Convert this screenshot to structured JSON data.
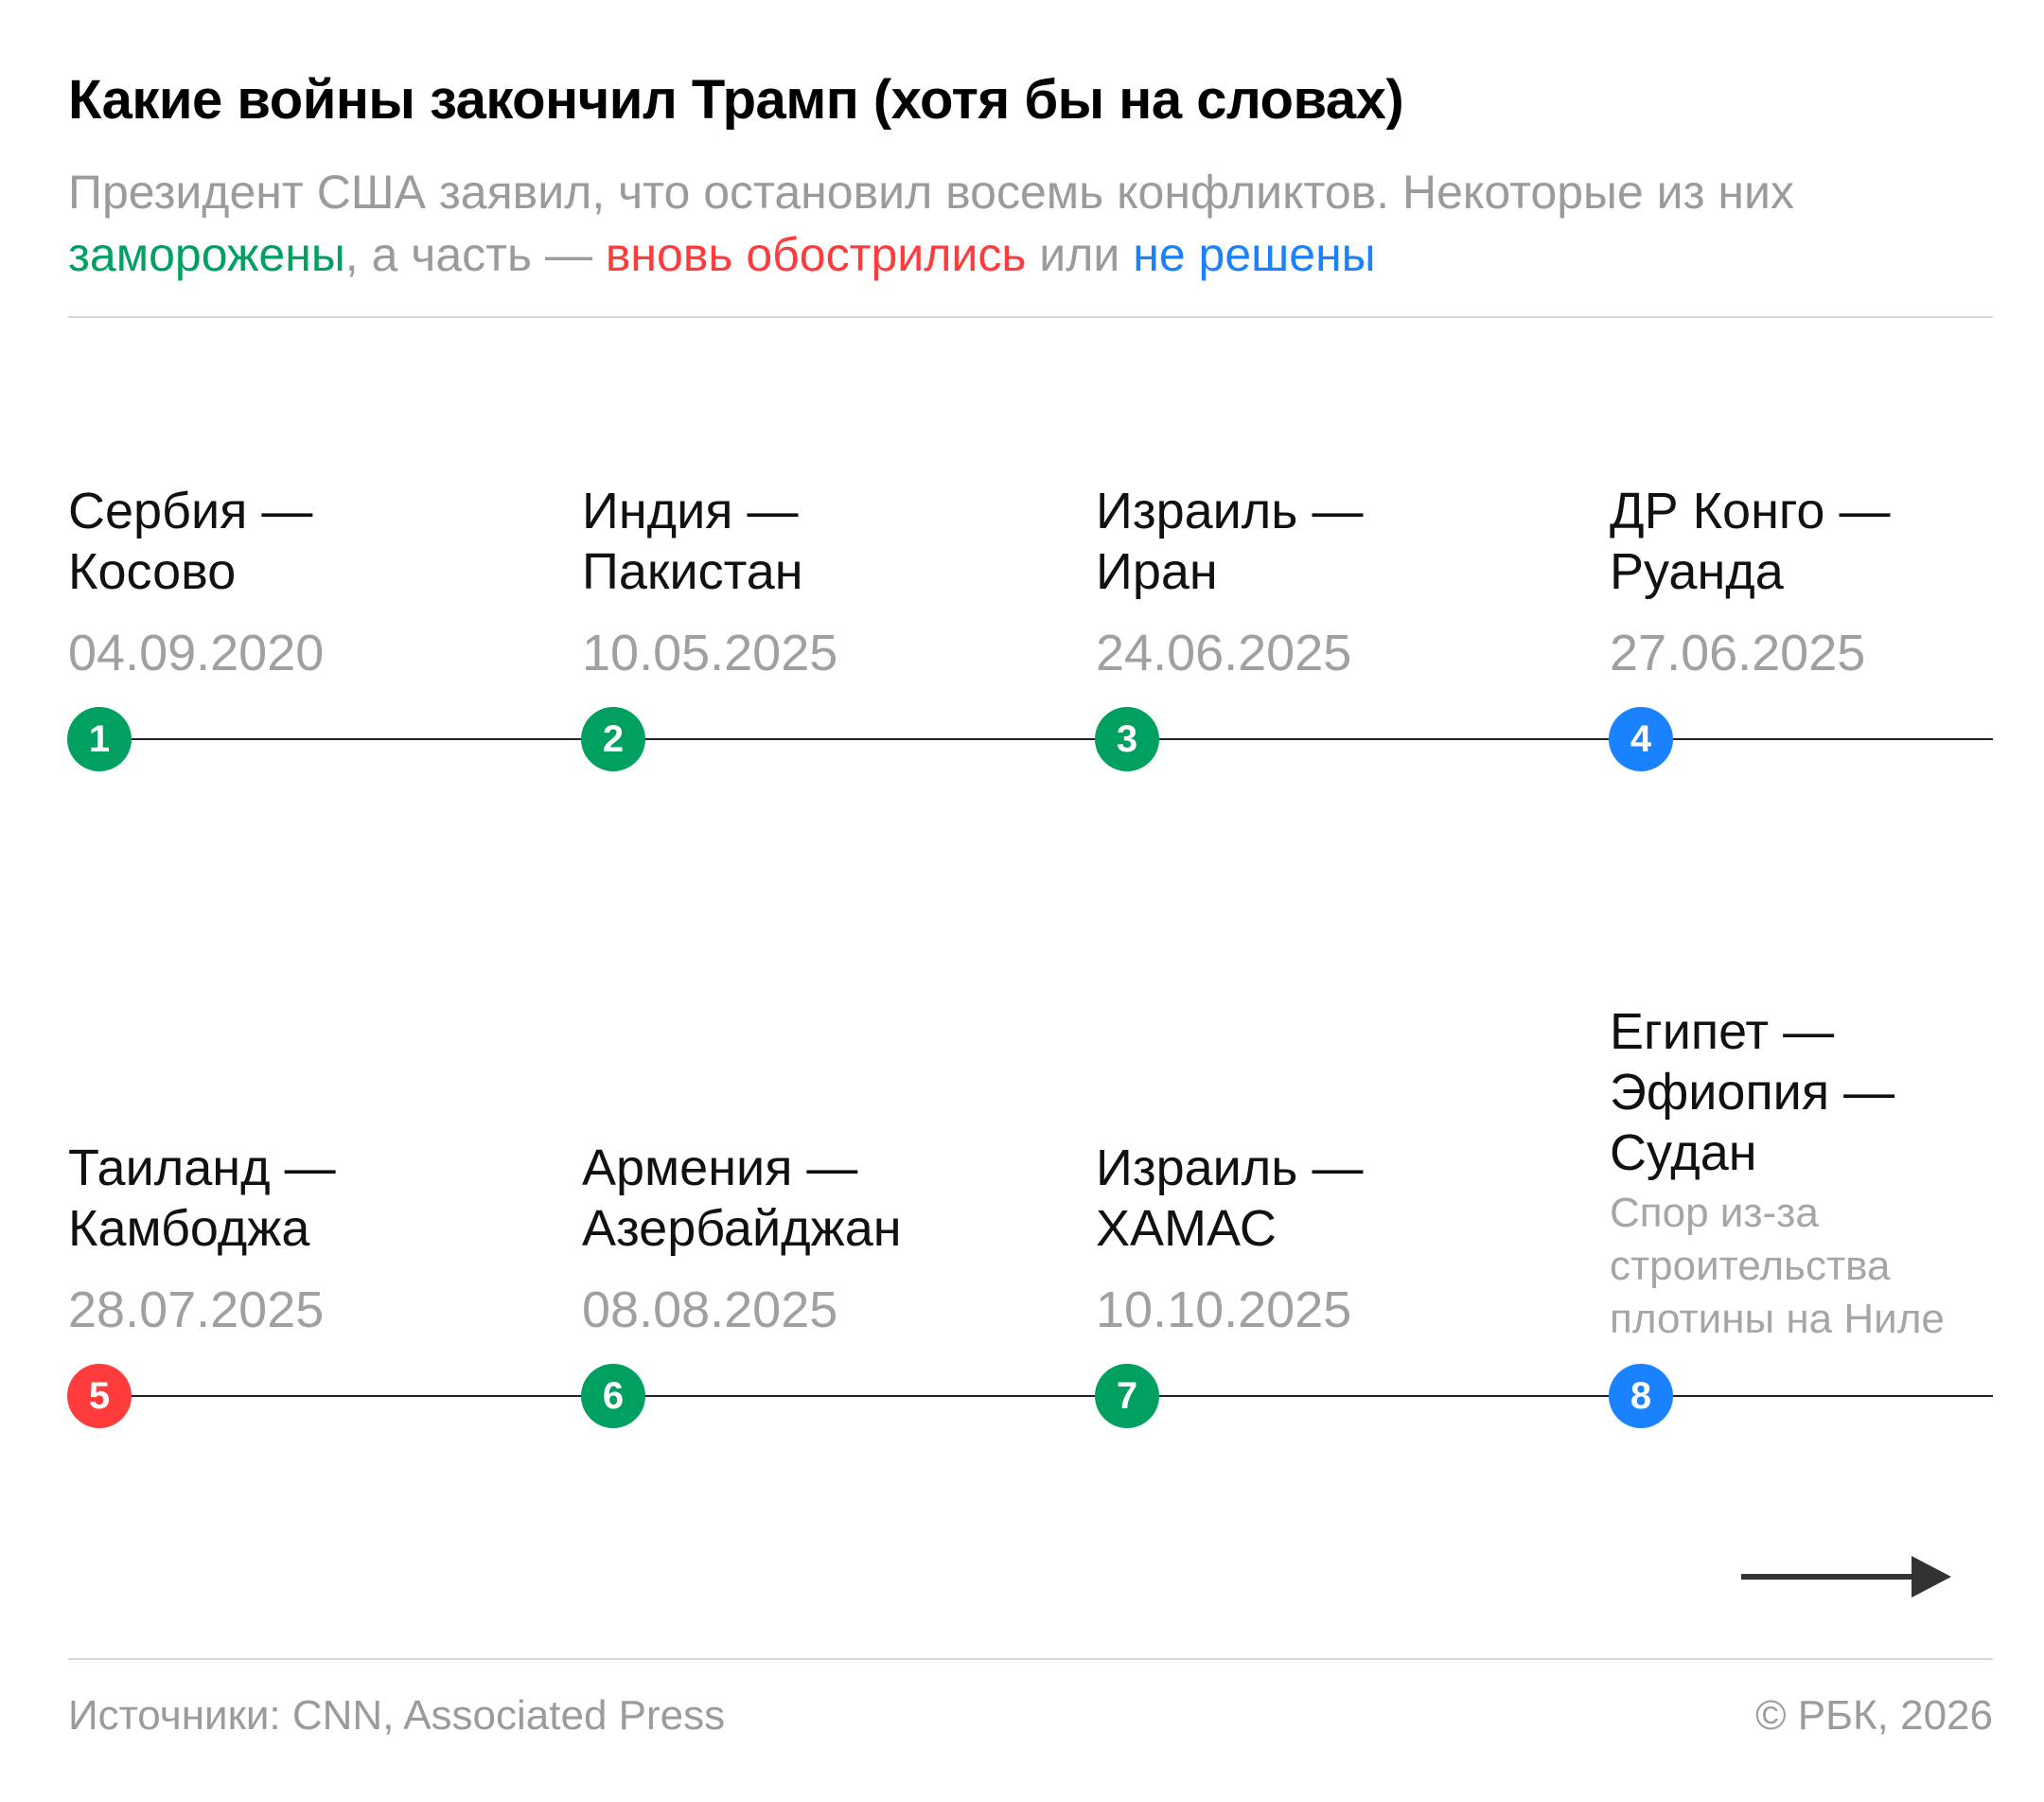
{
  "title": "Какие войны закончил Трамп (хотя бы на словах)",
  "subtitle": {
    "part1": "Президент США заявил, что остановил восемь конфликтов. Некоторые из них ",
    "frozen": "заморожены",
    "part2": ", а часть — ",
    "escalated": "вновь обострились",
    "part3": " или ",
    "unresolved": "не решены"
  },
  "colors": {
    "frozen": "#00a060",
    "escalated": "#ff3b3b",
    "unresolved": "#1a82ff"
  },
  "conflicts": [
    {
      "number": "1",
      "name_line1": "Сербия —",
      "name_line2": "Косово",
      "date": "04.09.2020",
      "status": "frozen"
    },
    {
      "number": "2",
      "name_line1": "Индия —",
      "name_line2": "Пакистан",
      "date": "10.05.2025",
      "status": "frozen"
    },
    {
      "number": "3",
      "name_line1": "Израиль —",
      "name_line2": "Иран",
      "date": "24.06.2025",
      "status": "frozen"
    },
    {
      "number": "4",
      "name_line1": "ДР Конго —",
      "name_line2": "Руанда",
      "date": "27.06.2025",
      "status": "unresolved"
    },
    {
      "number": "5",
      "name_line1": "Таиланд —",
      "name_line2": "Камбоджа",
      "date": "28.07.2025",
      "status": "escalated"
    },
    {
      "number": "6",
      "name_line1": "Армения —",
      "name_line2": "Азербайджан",
      "date": "08.08.2025",
      "status": "frozen"
    },
    {
      "number": "7",
      "name_line1": "Израиль —",
      "name_line2": "ХАМАС",
      "date": "10.10.2025",
      "status": "frozen"
    },
    {
      "number": "8",
      "name_line1": "Египет —",
      "name_line2": "Эфиопия —",
      "name_line3": "Судан",
      "note_line1": "Спор из-за",
      "note_line2": "строительства",
      "note_line3": "плотины на Ниле",
      "status": "unresolved"
    }
  ],
  "footer": {
    "sources": "Источники: CNN, Associated Press",
    "copyright": "© РБК, 2026"
  }
}
